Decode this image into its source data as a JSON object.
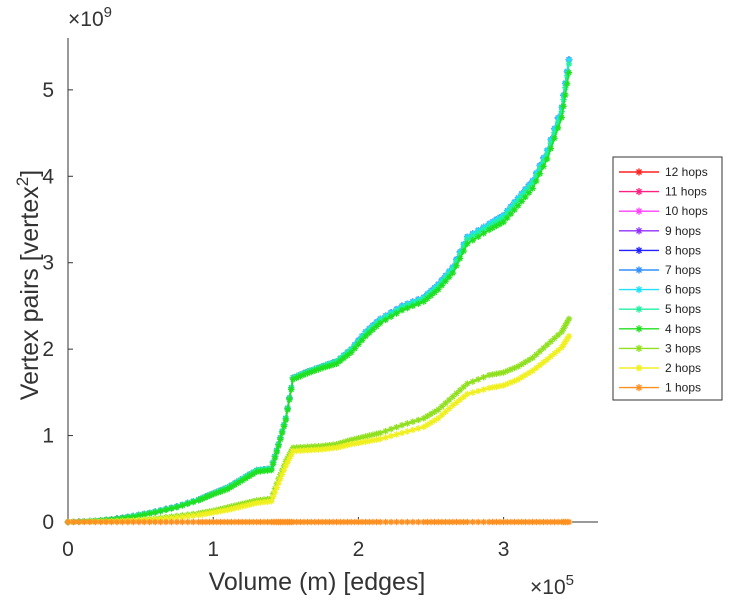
{
  "chart_data": {
    "type": "line",
    "title": "",
    "xlabel": "Volume (m) [edges]",
    "ylabel": "Vertex pairs [vertex",
    "ylabel_superscript": "2",
    "ylabel_suffix": "]",
    "x_multiplier": {
      "base": "×10",
      "exponent": "5"
    },
    "y_multiplier": {
      "base": "×10",
      "exponent": "9"
    },
    "xlim": [
      0,
      3.65
    ],
    "ylim": [
      0,
      5.6
    ],
    "x_ticks": [
      0,
      1,
      2,
      3
    ],
    "x_tick_labels": [
      "0",
      "1",
      "2",
      "3"
    ],
    "y_ticks": [
      0,
      1,
      2,
      3,
      4,
      5
    ],
    "y_tick_labels": [
      "0",
      "1",
      "2",
      "3",
      "4",
      "5"
    ],
    "grid": false,
    "legend_position": "right",
    "legend_order": [
      "12 hops",
      "11 hops",
      "10 hops",
      "9 hops",
      "8 hops",
      "7 hops",
      "6 hops",
      "5 hops",
      "4 hops",
      "3 hops",
      "2 hops",
      "1 hops"
    ],
    "x": [
      0,
      0.15,
      0.3,
      0.45,
      0.6,
      0.75,
      0.9,
      1.0,
      1.1,
      1.2,
      1.3,
      1.4,
      1.45,
      1.5,
      1.55,
      1.65,
      1.75,
      1.85,
      1.95,
      2.05,
      2.15,
      2.3,
      2.45,
      2.55,
      2.65,
      2.75,
      2.9,
      3.0,
      3.1,
      3.2,
      3.3,
      3.4,
      3.45
    ],
    "series": [
      {
        "name": "12 hops",
        "color": "#ff2020",
        "values": [
          0,
          0.01,
          0.03,
          0.07,
          0.12,
          0.18,
          0.26,
          0.33,
          0.4,
          0.5,
          0.6,
          0.62,
          0.9,
          1.2,
          1.67,
          1.74,
          1.8,
          1.86,
          2.0,
          2.2,
          2.35,
          2.5,
          2.6,
          2.75,
          2.95,
          3.3,
          3.45,
          3.55,
          3.75,
          3.95,
          4.3,
          4.8,
          5.35
        ]
      },
      {
        "name": "11 hops",
        "color": "#ff2080",
        "values": [
          0,
          0.01,
          0.03,
          0.07,
          0.12,
          0.18,
          0.26,
          0.33,
          0.4,
          0.5,
          0.6,
          0.62,
          0.9,
          1.2,
          1.67,
          1.74,
          1.8,
          1.86,
          2.0,
          2.2,
          2.35,
          2.5,
          2.6,
          2.75,
          2.95,
          3.3,
          3.45,
          3.55,
          3.75,
          3.95,
          4.3,
          4.8,
          5.35
        ]
      },
      {
        "name": "10 hops",
        "color": "#ff40ff",
        "values": [
          0,
          0.01,
          0.03,
          0.07,
          0.12,
          0.18,
          0.26,
          0.33,
          0.4,
          0.5,
          0.6,
          0.62,
          0.9,
          1.2,
          1.67,
          1.74,
          1.8,
          1.86,
          2.0,
          2.2,
          2.35,
          2.5,
          2.6,
          2.75,
          2.95,
          3.3,
          3.45,
          3.55,
          3.75,
          3.95,
          4.3,
          4.8,
          5.35
        ]
      },
      {
        "name": "9 hops",
        "color": "#9030ff",
        "values": [
          0,
          0.01,
          0.03,
          0.07,
          0.12,
          0.18,
          0.26,
          0.33,
          0.4,
          0.5,
          0.6,
          0.62,
          0.9,
          1.2,
          1.67,
          1.74,
          1.8,
          1.86,
          2.0,
          2.2,
          2.35,
          2.5,
          2.6,
          2.75,
          2.95,
          3.3,
          3.45,
          3.55,
          3.75,
          3.95,
          4.3,
          4.8,
          5.35
        ]
      },
      {
        "name": "8 hops",
        "color": "#2020ff",
        "values": [
          0,
          0.01,
          0.03,
          0.07,
          0.12,
          0.18,
          0.26,
          0.33,
          0.4,
          0.5,
          0.6,
          0.62,
          0.9,
          1.2,
          1.67,
          1.74,
          1.8,
          1.86,
          2.0,
          2.2,
          2.35,
          2.5,
          2.6,
          2.75,
          2.95,
          3.3,
          3.45,
          3.55,
          3.75,
          3.95,
          4.3,
          4.8,
          5.35
        ]
      },
      {
        "name": "7 hops",
        "color": "#3090ff",
        "values": [
          0,
          0.01,
          0.03,
          0.07,
          0.12,
          0.18,
          0.26,
          0.33,
          0.4,
          0.5,
          0.6,
          0.62,
          0.9,
          1.2,
          1.67,
          1.74,
          1.8,
          1.86,
          2.0,
          2.2,
          2.35,
          2.5,
          2.6,
          2.75,
          2.95,
          3.3,
          3.45,
          3.55,
          3.75,
          3.95,
          4.3,
          4.8,
          5.35
        ]
      },
      {
        "name": "6 hops",
        "color": "#20e0ff",
        "values": [
          0,
          0.01,
          0.03,
          0.07,
          0.12,
          0.18,
          0.26,
          0.33,
          0.4,
          0.5,
          0.6,
          0.62,
          0.9,
          1.2,
          1.67,
          1.74,
          1.8,
          1.86,
          2.0,
          2.2,
          2.35,
          2.5,
          2.6,
          2.75,
          2.95,
          3.3,
          3.45,
          3.55,
          3.75,
          3.95,
          4.3,
          4.8,
          5.35
        ]
      },
      {
        "name": "5 hops",
        "color": "#20f0a0",
        "values": [
          0,
          0.01,
          0.03,
          0.07,
          0.12,
          0.18,
          0.26,
          0.33,
          0.4,
          0.5,
          0.6,
          0.62,
          0.9,
          1.2,
          1.67,
          1.74,
          1.8,
          1.86,
          1.99,
          2.18,
          2.33,
          2.48,
          2.58,
          2.72,
          2.92,
          3.27,
          3.42,
          3.52,
          3.72,
          3.92,
          4.26,
          4.75,
          5.3
        ]
      },
      {
        "name": "4 hops",
        "color": "#20e020",
        "values": [
          0,
          0.01,
          0.03,
          0.06,
          0.11,
          0.17,
          0.25,
          0.32,
          0.38,
          0.48,
          0.58,
          0.6,
          0.88,
          1.18,
          1.65,
          1.72,
          1.78,
          1.83,
          1.96,
          2.15,
          2.3,
          2.45,
          2.55,
          2.69,
          2.88,
          3.22,
          3.38,
          3.47,
          3.66,
          3.86,
          4.2,
          4.68,
          5.2
        ]
      },
      {
        "name": "3 hops",
        "color": "#90e020",
        "values": [
          0,
          0.005,
          0.01,
          0.02,
          0.04,
          0.07,
          0.1,
          0.13,
          0.17,
          0.21,
          0.25,
          0.27,
          0.5,
          0.7,
          0.86,
          0.87,
          0.88,
          0.9,
          0.95,
          0.99,
          1.03,
          1.12,
          1.2,
          1.3,
          1.45,
          1.6,
          1.7,
          1.73,
          1.8,
          1.9,
          2.05,
          2.2,
          2.35
        ]
      },
      {
        "name": "2 hops",
        "color": "#f0f020",
        "values": [
          0,
          0.004,
          0.008,
          0.016,
          0.03,
          0.05,
          0.08,
          0.11,
          0.14,
          0.18,
          0.22,
          0.24,
          0.45,
          0.65,
          0.82,
          0.83,
          0.84,
          0.86,
          0.9,
          0.93,
          0.96,
          1.03,
          1.1,
          1.2,
          1.35,
          1.48,
          1.55,
          1.58,
          1.65,
          1.75,
          1.88,
          2.02,
          2.15
        ]
      },
      {
        "name": "1 hops",
        "color": "#ff9020",
        "values": [
          0,
          0,
          0,
          0,
          0,
          0,
          0,
          0,
          0,
          0,
          0,
          0,
          0,
          0,
          0,
          0,
          0,
          0,
          0,
          0,
          0,
          0,
          0,
          0,
          0,
          0,
          0,
          0,
          0,
          0,
          0,
          0,
          0
        ]
      }
    ]
  }
}
